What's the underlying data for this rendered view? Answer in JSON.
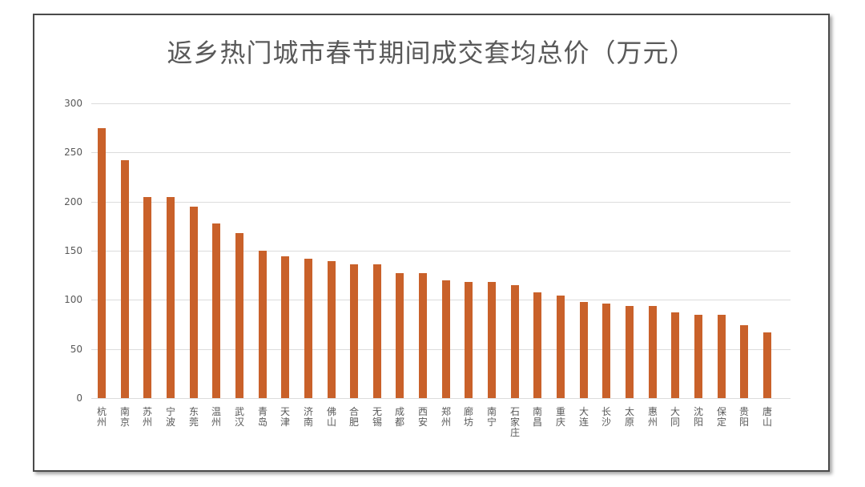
{
  "chart_data": {
    "type": "bar",
    "title": "返乡热门城市春节期间成交套均总价（万元）",
    "xlabel": "",
    "ylabel": "",
    "ylim": [
      0,
      300
    ],
    "yticks": [
      0,
      50,
      100,
      150,
      200,
      250,
      300
    ],
    "grid": true,
    "legend": null,
    "bar_color": "#c9612a",
    "categories": [
      "杭州",
      "南京",
      "苏州",
      "宁波",
      "东莞",
      "温州",
      "武汉",
      "青岛",
      "天津",
      "济南",
      "佛山",
      "合肥",
      "无锡",
      "成都",
      "西安",
      "郑州",
      "廊坊",
      "南宁",
      "石家庄",
      "南昌",
      "重庆",
      "大连",
      "长沙",
      "太原",
      "惠州",
      "大同",
      "沈阳",
      "保定",
      "贵阳",
      "唐山"
    ],
    "values": [
      275,
      242,
      205,
      205,
      195,
      178,
      168,
      150,
      144,
      142,
      139,
      136,
      136,
      127,
      127,
      120,
      118,
      118,
      115,
      108,
      104,
      98,
      96,
      94,
      94,
      87,
      85,
      85,
      74,
      67
    ]
  }
}
